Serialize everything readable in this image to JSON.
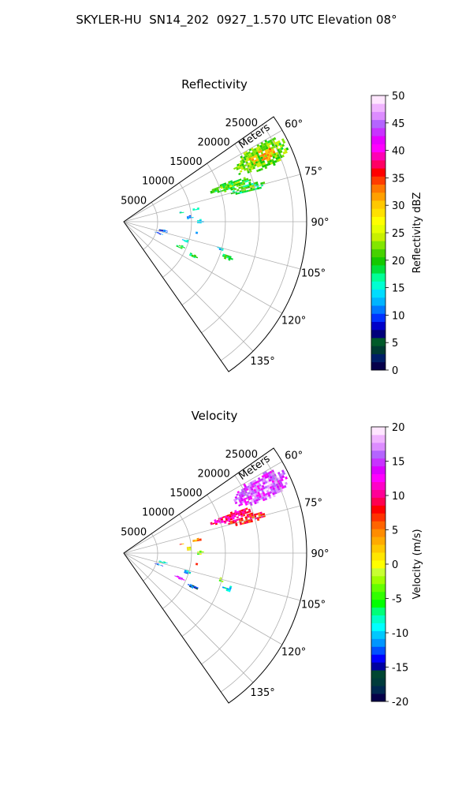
{
  "figure": {
    "suptitle": "SKYLER-HU  SN14_202  0927_1.570 UTC Elevation 08°"
  },
  "chart_data": [
    {
      "type": "heatmap",
      "subtype": "polar-sector",
      "title": "Reflectivity",
      "radial_label": "Meters",
      "radial_ticks": [
        5000,
        10000,
        15000,
        20000,
        25000
      ],
      "rlim": [
        0,
        27000
      ],
      "theta_range_deg": [
        55,
        145
      ],
      "theta_ticks": [
        "60°",
        "75°",
        "90°",
        "105°",
        "120°",
        "135°"
      ],
      "theta_tick_values": [
        60,
        75,
        90,
        105,
        120,
        135
      ],
      "grid": true,
      "colorbar": {
        "label": "Reflectivity dBZ",
        "range": [
          0,
          50
        ],
        "ticks": [
          0,
          5,
          10,
          15,
          20,
          25,
          30,
          35,
          40,
          45,
          50
        ],
        "colormap": "NWSRef"
      },
      "echo_regions": [
        {
          "theta": [
            60,
            69
          ],
          "r": [
            18000,
            26500
          ],
          "value": 22,
          "peak": 32
        },
        {
          "theta": [
            69,
            73
          ],
          "r": [
            13500,
            19500
          ],
          "value": 20,
          "peak": 24
        },
        {
          "theta": [
            72.5,
            76
          ],
          "r": [
            16000,
            21500
          ],
          "value": 19,
          "peak": 22
        },
        {
          "theta": [
            80,
            81.5
          ],
          "r": [
            8000,
            8800
          ],
          "value": 15
        },
        {
          "theta": [
            78.5,
            80.5
          ],
          "r": [
            10000,
            11500
          ],
          "value": 17
        },
        {
          "theta": [
            84.5,
            87
          ],
          "r": [
            9000,
            10000
          ],
          "value": 12
        },
        {
          "theta": [
            88,
            91
          ],
          "r": [
            10500,
            11500
          ],
          "value": 13
        },
        {
          "theta": [
            101,
            104
          ],
          "r": [
            5000,
            6500
          ],
          "value": 9
        },
        {
          "theta": [
            107,
            109
          ],
          "r": [
            4800,
            5800
          ],
          "value": 10
        },
        {
          "theta": [
            97,
            99
          ],
          "r": [
            10400,
            11000
          ],
          "value": 13
        },
        {
          "theta": [
            105,
            108
          ],
          "r": [
            9000,
            10000
          ],
          "value": 14
        },
        {
          "theta": [
            112,
            115
          ],
          "r": [
            8200,
            9600
          ],
          "value": 19,
          "peak": 24
        },
        {
          "theta": [
            114,
            117
          ],
          "r": [
            10500,
            12000
          ],
          "value": 18
        },
        {
          "theta": [
            104,
            106
          ],
          "r": [
            14300,
            15100
          ],
          "value": 14
        },
        {
          "theta": [
            107,
            110
          ],
          "r": [
            15400,
            16800
          ],
          "value": 20
        }
      ]
    },
    {
      "type": "heatmap",
      "subtype": "polar-sector",
      "title": "Velocity",
      "radial_label": "Meters",
      "radial_ticks": [
        5000,
        10000,
        15000,
        20000,
        25000
      ],
      "rlim": [
        0,
        27000
      ],
      "theta_range_deg": [
        55,
        145
      ],
      "theta_ticks": [
        "60°",
        "75°",
        "90°",
        "105°",
        "120°",
        "135°"
      ],
      "theta_tick_values": [
        60,
        75,
        90,
        105,
        120,
        135
      ],
      "grid": true,
      "colorbar": {
        "label": "Velocity (m/s)",
        "range": [
          -20,
          20
        ],
        "ticks": [
          -20,
          -15,
          -10,
          -5,
          0,
          5,
          10,
          15,
          20
        ],
        "colormap": "NWSVel"
      },
      "echo_regions": [
        {
          "theta": [
            60,
            69
          ],
          "r": [
            18000,
            26500
          ],
          "value": 15,
          "peak": 18
        },
        {
          "theta": [
            69,
            73
          ],
          "r": [
            13500,
            19500
          ],
          "value": 10
        },
        {
          "theta": [
            72.5,
            76
          ],
          "r": [
            16000,
            21500
          ],
          "value": 8
        },
        {
          "theta": [
            80,
            81.5
          ],
          "r": [
            8000,
            8800
          ],
          "value": 5
        },
        {
          "theta": [
            78.5,
            80.5
          ],
          "r": [
            10000,
            11500
          ],
          "value": 4
        },
        {
          "theta": [
            84.5,
            87
          ],
          "r": [
            9000,
            10000
          ],
          "value": 1
        },
        {
          "theta": [
            88,
            91
          ],
          "r": [
            10500,
            11500
          ],
          "value": -3
        },
        {
          "theta": [
            101,
            104
          ],
          "r": [
            5000,
            6500
          ],
          "value": -8
        },
        {
          "theta": [
            107,
            109
          ],
          "r": [
            4800,
            5800
          ],
          "value": -12
        },
        {
          "theta": [
            97,
            99
          ],
          "r": [
            10400,
            11000
          ],
          "value": 6
        },
        {
          "theta": [
            105,
            108
          ],
          "r": [
            9000,
            10000
          ],
          "value": -10
        },
        {
          "theta": [
            112,
            115
          ],
          "r": [
            8200,
            9600
          ],
          "value": 15
        },
        {
          "theta": [
            114,
            117
          ],
          "r": [
            10500,
            12000
          ],
          "value": -14
        },
        {
          "theta": [
            104,
            106
          ],
          "r": [
            14300,
            15100
          ],
          "value": -2
        },
        {
          "theta": [
            107,
            110
          ],
          "r": [
            15400,
            16800
          ],
          "value": -10
        }
      ]
    }
  ]
}
